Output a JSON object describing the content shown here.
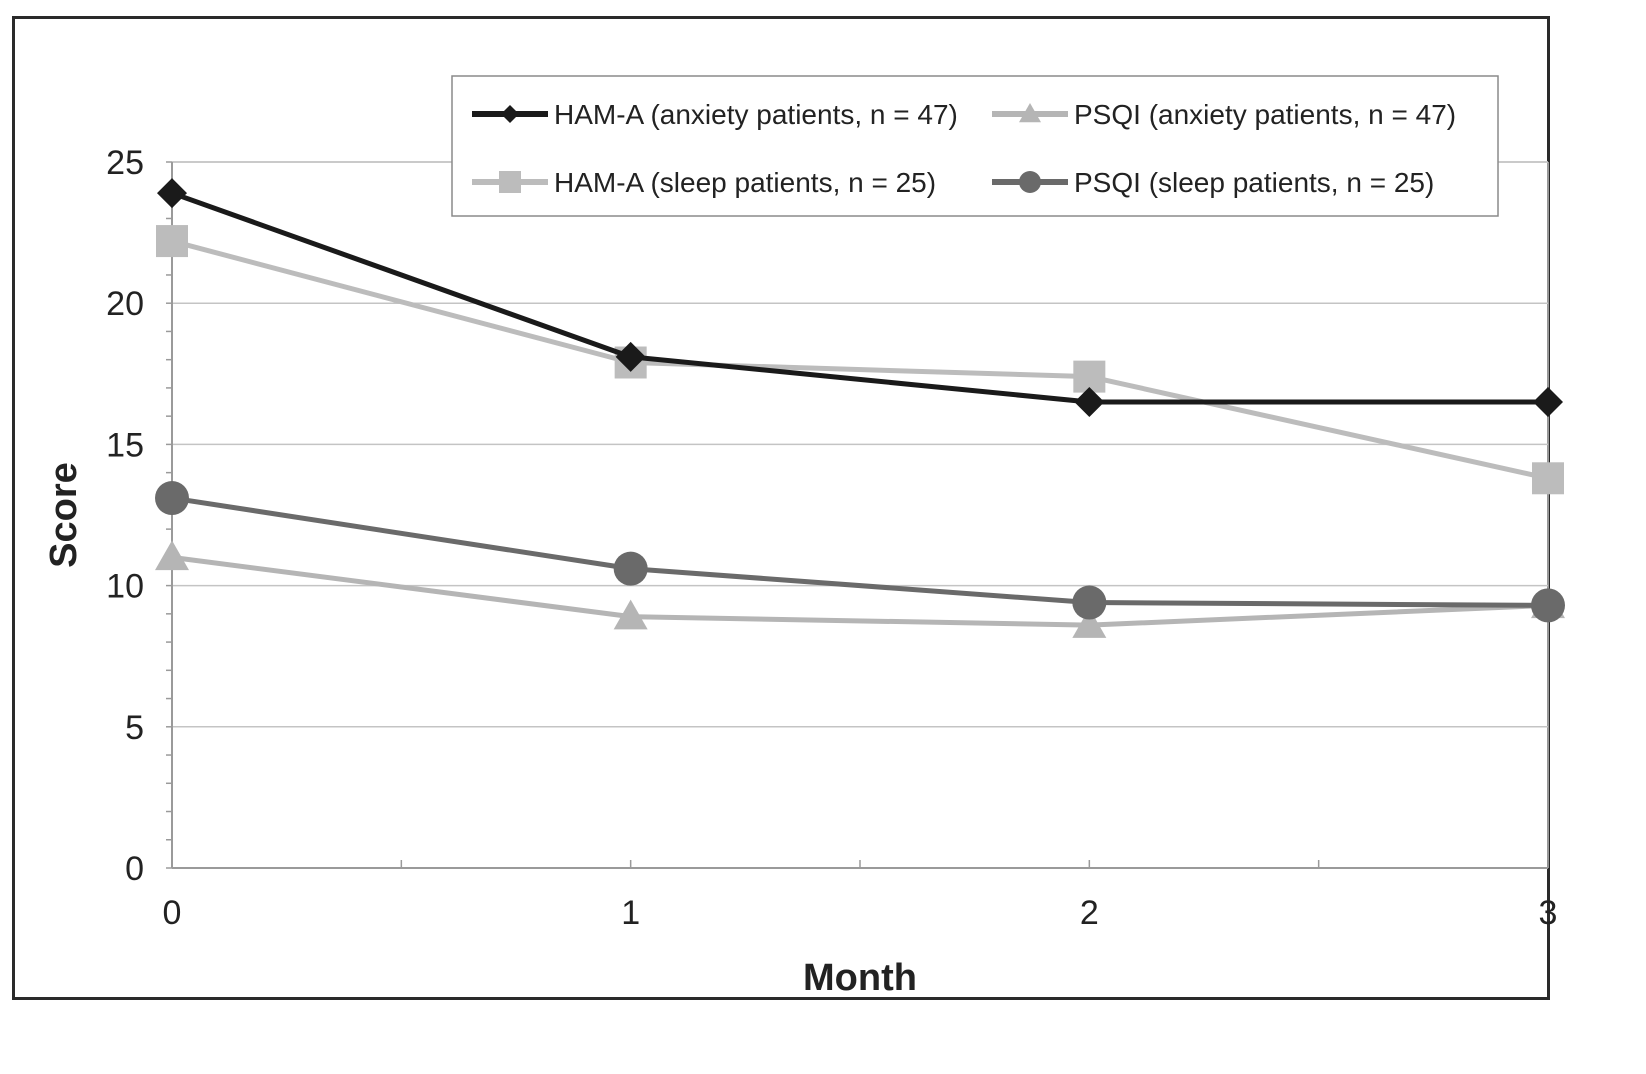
{
  "chart_data": {
    "type": "line",
    "xlabel": "Month",
    "ylabel": "Score",
    "x": [
      0,
      1,
      2,
      3
    ],
    "x_tick_labels": [
      "0",
      "1",
      "2",
      "3"
    ],
    "ylim": [
      0,
      25
    ],
    "y_ticks": [
      0,
      5,
      10,
      15,
      20,
      25
    ],
    "grid": "horizontal",
    "legend_position": "top-right",
    "series": [
      {
        "name": "HAM-A (anxiety patients, n = 47)",
        "values": [
          23.9,
          18.1,
          16.5,
          16.5
        ],
        "color": "#1a1a1a",
        "marker": "diamond"
      },
      {
        "name": "PSQI (anxiety patients, n = 47)",
        "values": [
          11.0,
          8.9,
          8.6,
          9.3
        ],
        "color": "#b5b5b5",
        "marker": "triangle"
      },
      {
        "name": "HAM-A (sleep patients, n = 25)",
        "values": [
          22.2,
          17.9,
          17.4,
          13.8
        ],
        "color": "#bcbcbc",
        "marker": "square"
      },
      {
        "name": "PSQI (sleep patients, n = 25)",
        "values": [
          13.1,
          10.6,
          9.4,
          9.3
        ],
        "color": "#6a6a6a",
        "marker": "circle"
      }
    ]
  }
}
